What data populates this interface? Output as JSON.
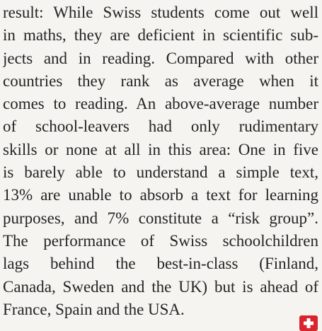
{
  "paragraph": {
    "lines": [
      "result: While Swiss students come out well",
      "in maths, they are deficient in scientific sub-",
      "jects and in reading. Compared with other",
      "countries they rank as average when it",
      "comes to reading. An above-average number",
      "of school-leavers had only rudimentary",
      "skills or none at all in this area: One in five",
      "is barely able to understand a simple text,",
      "13% are unable to absorb a text for learning",
      "purposes, and 7% constitute a “risk group”.",
      "The performance of Swiss schoolchildren",
      "lags behind the best-in-class (Finland,",
      "Canada, Sweden and the UK) but is ahead of",
      "France, Spain and the USA."
    ]
  }
}
